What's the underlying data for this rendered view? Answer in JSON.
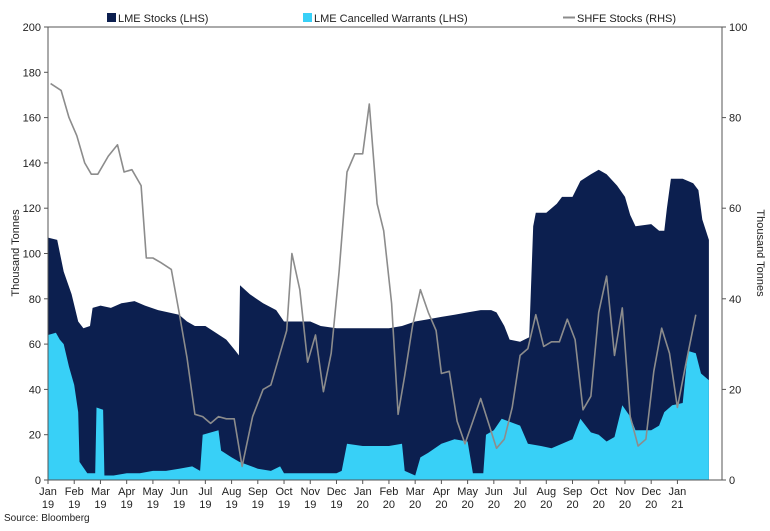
{
  "chart_data": {
    "type": "area",
    "title": "",
    "source": "Source: Bloomberg",
    "ylabel_left": "Thousand Tonnes",
    "ylabel_right": "Thousand Tonnes",
    "ylim_left": [
      0,
      200
    ],
    "ylim_right": [
      0,
      100
    ],
    "yticks_left": [
      "0",
      "20",
      "40",
      "60",
      "80",
      "100",
      "120",
      "140",
      "160",
      "180",
      "200"
    ],
    "yticks_right": [
      "0",
      "20",
      "40",
      "60",
      "80",
      "100"
    ],
    "x_range": [
      0,
      25.7
    ],
    "xticks": [
      {
        "month": "Jan",
        "year": "19"
      },
      {
        "month": "Feb",
        "year": "19"
      },
      {
        "month": "Mar",
        "year": "19"
      },
      {
        "month": "Apr",
        "year": "19"
      },
      {
        "month": "May",
        "year": "19"
      },
      {
        "month": "Jun",
        "year": "19"
      },
      {
        "month": "Jul",
        "year": "19"
      },
      {
        "month": "Aug",
        "year": "19"
      },
      {
        "month": "Sep",
        "year": "19"
      },
      {
        "month": "Oct",
        "year": "19"
      },
      {
        "month": "Nov",
        "year": "19"
      },
      {
        "month": "Dec",
        "year": "19"
      },
      {
        "month": "Jan",
        "year": "20"
      },
      {
        "month": "Feb",
        "year": "20"
      },
      {
        "month": "Mar",
        "year": "20"
      },
      {
        "month": "Apr",
        "year": "20"
      },
      {
        "month": "May",
        "year": "20"
      },
      {
        "month": "Jun",
        "year": "20"
      },
      {
        "month": "Jul",
        "year": "20"
      },
      {
        "month": "Aug",
        "year": "20"
      },
      {
        "month": "Sep",
        "year": "20"
      },
      {
        "month": "Oct",
        "year": "20"
      },
      {
        "month": "Nov",
        "year": "20"
      },
      {
        "month": "Dec",
        "year": "20"
      },
      {
        "month": "Jan",
        "year": "21"
      }
    ],
    "series": [
      {
        "name": "LME Stocks (LHS)",
        "type": "area",
        "axis": "left",
        "color": "#0c1f4f",
        "points": [
          [
            0.0,
            107
          ],
          [
            0.35,
            106
          ],
          [
            0.6,
            92
          ],
          [
            0.9,
            82
          ],
          [
            1.15,
            70
          ],
          [
            1.35,
            67
          ],
          [
            1.6,
            68
          ],
          [
            1.7,
            76
          ],
          [
            2.0,
            77
          ],
          [
            2.4,
            76
          ],
          [
            2.8,
            78
          ],
          [
            3.3,
            79
          ],
          [
            3.7,
            77
          ],
          [
            4.2,
            75
          ],
          [
            5.0,
            73
          ],
          [
            5.3,
            70
          ],
          [
            5.6,
            68
          ],
          [
            6.0,
            68
          ],
          [
            6.4,
            65
          ],
          [
            6.8,
            62
          ],
          [
            7.15,
            57
          ],
          [
            7.28,
            55
          ],
          [
            7.32,
            86
          ],
          [
            7.7,
            82
          ],
          [
            8.2,
            78
          ],
          [
            8.7,
            75
          ],
          [
            9.0,
            70
          ],
          [
            9.5,
            70
          ],
          [
            10.0,
            70
          ],
          [
            10.4,
            68
          ],
          [
            11.0,
            67
          ],
          [
            11.5,
            67
          ],
          [
            12.0,
            67
          ],
          [
            12.5,
            67
          ],
          [
            13.0,
            67
          ],
          [
            13.5,
            68
          ],
          [
            14.0,
            70
          ],
          [
            14.5,
            71
          ],
          [
            15.0,
            72
          ],
          [
            15.5,
            73
          ],
          [
            16.0,
            74
          ],
          [
            16.5,
            75
          ],
          [
            16.9,
            75
          ],
          [
            17.1,
            74
          ],
          [
            17.4,
            68
          ],
          [
            17.6,
            62
          ],
          [
            18.0,
            61
          ],
          [
            18.35,
            63
          ],
          [
            18.5,
            112
          ],
          [
            18.6,
            118
          ],
          [
            19.0,
            118
          ],
          [
            19.4,
            122
          ],
          [
            19.6,
            125
          ],
          [
            20.0,
            125
          ],
          [
            20.3,
            132
          ],
          [
            20.7,
            135
          ],
          [
            21.0,
            137
          ],
          [
            21.3,
            135
          ],
          [
            21.7,
            130
          ],
          [
            22.0,
            125
          ],
          [
            22.2,
            117
          ],
          [
            22.4,
            112
          ],
          [
            23.0,
            113
          ],
          [
            23.3,
            110
          ],
          [
            23.5,
            110
          ],
          [
            23.6,
            120
          ],
          [
            23.75,
            133
          ],
          [
            24.2,
            133
          ],
          [
            24.6,
            131
          ],
          [
            24.8,
            128
          ],
          [
            24.95,
            115
          ],
          [
            25.2,
            106
          ]
        ]
      },
      {
        "name": "LME Cancelled Warrants (LHS)",
        "type": "area",
        "axis": "left",
        "color": "#38d0f7",
        "points": [
          [
            0.0,
            64
          ],
          [
            0.3,
            65
          ],
          [
            0.45,
            62
          ],
          [
            0.6,
            60
          ],
          [
            0.8,
            50
          ],
          [
            1.0,
            42
          ],
          [
            1.15,
            30
          ],
          [
            1.2,
            8
          ],
          [
            1.5,
            3
          ],
          [
            1.7,
            3
          ],
          [
            1.8,
            3
          ],
          [
            1.85,
            32
          ],
          [
            2.1,
            31
          ],
          [
            2.15,
            2
          ],
          [
            2.5,
            2
          ],
          [
            3.0,
            3
          ],
          [
            3.5,
            3
          ],
          [
            4.0,
            4
          ],
          [
            4.5,
            4
          ],
          [
            5.0,
            5
          ],
          [
            5.5,
            6
          ],
          [
            5.8,
            4
          ],
          [
            5.9,
            20
          ],
          [
            6.5,
            22
          ],
          [
            6.6,
            13
          ],
          [
            7.0,
            10
          ],
          [
            7.3,
            8
          ],
          [
            8.0,
            5
          ],
          [
            8.5,
            4
          ],
          [
            8.85,
            6
          ],
          [
            9.0,
            3
          ],
          [
            9.5,
            3
          ],
          [
            10.0,
            3
          ],
          [
            10.5,
            3
          ],
          [
            11.0,
            3
          ],
          [
            11.2,
            4
          ],
          [
            11.4,
            16
          ],
          [
            12.0,
            15
          ],
          [
            12.5,
            15
          ],
          [
            13.0,
            15
          ],
          [
            13.5,
            16
          ],
          [
            13.6,
            4
          ],
          [
            14.0,
            2
          ],
          [
            14.2,
            10
          ],
          [
            14.5,
            12
          ],
          [
            15.0,
            16
          ],
          [
            15.5,
            18
          ],
          [
            16.0,
            17
          ],
          [
            16.2,
            3
          ],
          [
            16.6,
            3
          ],
          [
            16.7,
            20
          ],
          [
            17.0,
            22
          ],
          [
            17.3,
            27
          ],
          [
            18.0,
            24
          ],
          [
            18.3,
            16
          ],
          [
            18.8,
            15
          ],
          [
            19.2,
            14
          ],
          [
            19.6,
            16
          ],
          [
            20.0,
            18
          ],
          [
            20.3,
            27
          ],
          [
            20.7,
            21
          ],
          [
            21.0,
            20
          ],
          [
            21.3,
            17
          ],
          [
            21.6,
            19
          ],
          [
            21.9,
            33
          ],
          [
            22.2,
            28
          ],
          [
            22.4,
            22
          ],
          [
            23.0,
            22
          ],
          [
            23.3,
            24
          ],
          [
            23.5,
            30
          ],
          [
            23.8,
            33
          ],
          [
            24.2,
            34
          ],
          [
            24.4,
            57
          ],
          [
            24.7,
            56
          ],
          [
            24.9,
            47
          ],
          [
            25.2,
            44
          ]
        ]
      },
      {
        "name": "SHFE Stocks (RHS)",
        "type": "line",
        "axis": "right",
        "color": "#8c8c8c",
        "points": [
          [
            0.1,
            87.5
          ],
          [
            0.5,
            86
          ],
          [
            0.8,
            80
          ],
          [
            1.1,
            76
          ],
          [
            1.4,
            70
          ],
          [
            1.65,
            67.5
          ],
          [
            1.9,
            67.5
          ],
          [
            2.3,
            71.5
          ],
          [
            2.65,
            74
          ],
          [
            2.9,
            68
          ],
          [
            3.2,
            68.5
          ],
          [
            3.55,
            65
          ],
          [
            3.75,
            49
          ],
          [
            4.0,
            49
          ],
          [
            4.3,
            48
          ],
          [
            4.7,
            46.5
          ],
          [
            5.0,
            37
          ],
          [
            5.3,
            27
          ],
          [
            5.6,
            14.5
          ],
          [
            5.9,
            14
          ],
          [
            6.2,
            12.5
          ],
          [
            6.5,
            14
          ],
          [
            6.8,
            13.5
          ],
          [
            7.1,
            13.5
          ],
          [
            7.4,
            3
          ],
          [
            7.8,
            14
          ],
          [
            8.2,
            20
          ],
          [
            8.5,
            21
          ],
          [
            8.8,
            27
          ],
          [
            9.1,
            33
          ],
          [
            9.3,
            50
          ],
          [
            9.6,
            42
          ],
          [
            9.9,
            26
          ],
          [
            10.2,
            32
          ],
          [
            10.5,
            19.5
          ],
          [
            10.8,
            28
          ],
          [
            11.1,
            46
          ],
          [
            11.4,
            68
          ],
          [
            11.7,
            72
          ],
          [
            12.0,
            72
          ],
          [
            12.25,
            83
          ],
          [
            12.55,
            61
          ],
          [
            12.8,
            55
          ],
          [
            13.1,
            39
          ],
          [
            13.35,
            14.5
          ],
          [
            13.6,
            23
          ],
          [
            13.9,
            34
          ],
          [
            14.2,
            42
          ],
          [
            14.5,
            37
          ],
          [
            14.8,
            33
          ],
          [
            15.0,
            23.5
          ],
          [
            15.3,
            24
          ],
          [
            15.6,
            13
          ],
          [
            15.9,
            8
          ],
          [
            16.2,
            13
          ],
          [
            16.5,
            18
          ],
          [
            16.8,
            12.5
          ],
          [
            17.1,
            7
          ],
          [
            17.4,
            9
          ],
          [
            17.7,
            16
          ],
          [
            18.0,
            27.5
          ],
          [
            18.3,
            29
          ],
          [
            18.6,
            36.5
          ],
          [
            18.9,
            29.5
          ],
          [
            19.2,
            30.5
          ],
          [
            19.5,
            30.5
          ],
          [
            19.8,
            35.5
          ],
          [
            20.1,
            31
          ],
          [
            20.4,
            15.5
          ],
          [
            20.7,
            18.5
          ],
          [
            21.0,
            37
          ],
          [
            21.3,
            45
          ],
          [
            21.6,
            27.5
          ],
          [
            21.9,
            38
          ],
          [
            22.2,
            14
          ],
          [
            22.5,
            7.5
          ],
          [
            22.8,
            9
          ],
          [
            23.1,
            24
          ],
          [
            23.4,
            33.5
          ],
          [
            23.7,
            28
          ],
          [
            24.0,
            16
          ],
          [
            24.3,
            25
          ],
          [
            24.7,
            36.5
          ]
        ]
      }
    ]
  }
}
